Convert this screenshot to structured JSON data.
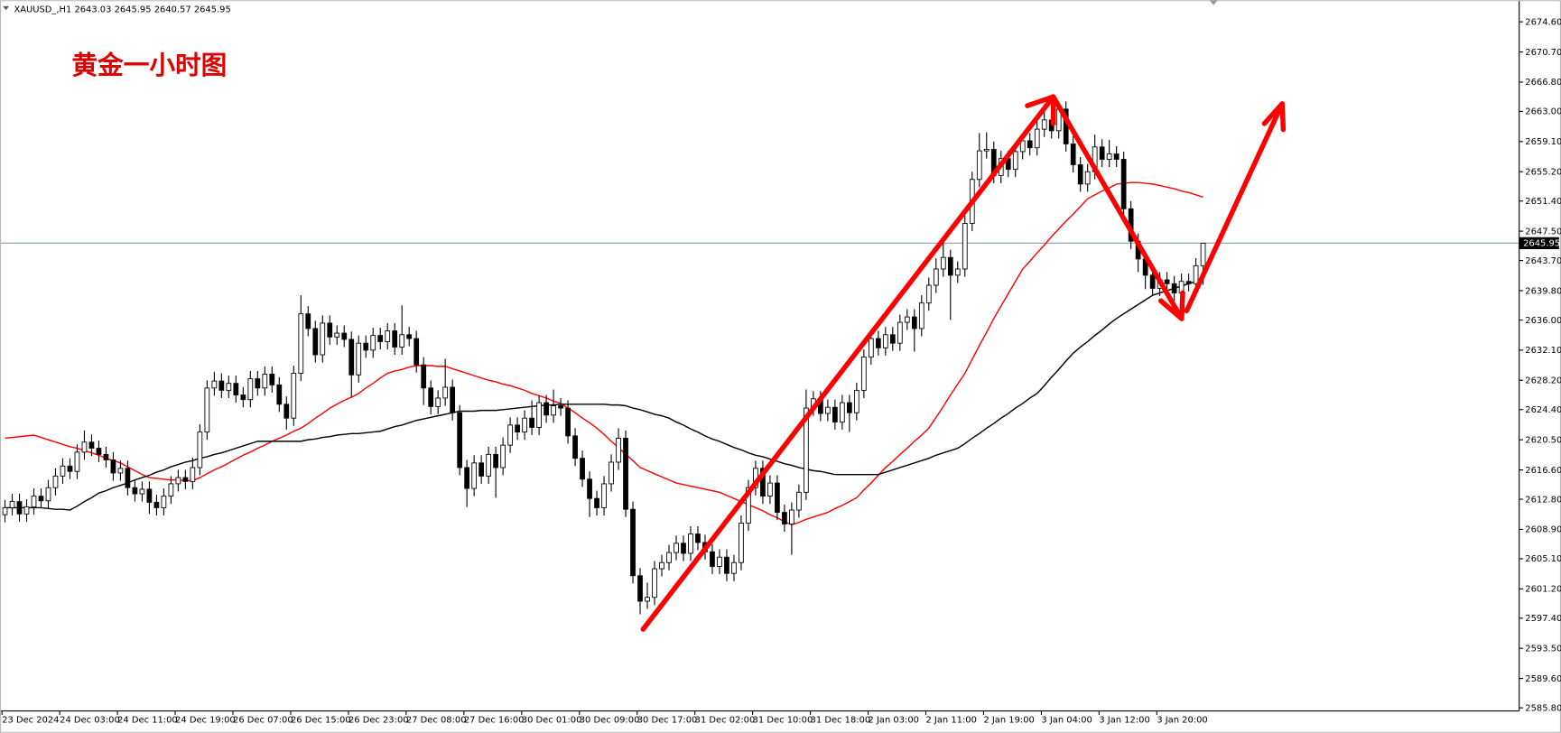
{
  "chart_data": {
    "type": "candlestick",
    "symbol": "XAUUSD_,H1",
    "annotation": "黄金一小时图",
    "categories": [
      "23 Dec 2024",
      null,
      null,
      null,
      null,
      null,
      null,
      null,
      "24 Dec 03:00",
      null,
      null,
      null,
      null,
      null,
      null,
      null,
      "24 Dec 11:00",
      null,
      null,
      null,
      null,
      null,
      null,
      null,
      "24 Dec 19:00",
      null,
      null,
      null,
      null,
      null,
      null,
      null,
      "26 Dec 07:00",
      null,
      null,
      null,
      null,
      null,
      null,
      null,
      "26 Dec 15:00",
      null,
      null,
      null,
      null,
      null,
      null,
      null,
      "26 Dec 23:00",
      null,
      null,
      null,
      null,
      null,
      null,
      null,
      "27 Dec 08:00",
      null,
      null,
      null,
      null,
      null,
      null,
      null,
      "27 Dec 16:00",
      null,
      null,
      null,
      null,
      null,
      null,
      null,
      "30 Dec 01:00",
      null,
      null,
      null,
      null,
      null,
      null,
      null,
      "30 Dec 09:00",
      null,
      null,
      null,
      null,
      null,
      null,
      null,
      "30 Dec 17:00",
      null,
      null,
      null,
      null,
      null,
      null,
      null,
      "31 Dec 02:00",
      null,
      null,
      null,
      null,
      null,
      null,
      null,
      "31 Dec 10:00",
      null,
      null,
      null,
      null,
      null,
      null,
      null,
      "31 Dec 18:00",
      null,
      null,
      null,
      null,
      null,
      null,
      null,
      "2 Jan 03:00",
      null,
      null,
      null,
      null,
      null,
      null,
      null,
      "2 Jan 11:00",
      null,
      null,
      null,
      null,
      null,
      null,
      null,
      "2 Jan 19:00",
      null,
      null,
      null,
      null,
      null,
      null,
      null,
      "3 Jan 04:00",
      null,
      null,
      null,
      null,
      null,
      null,
      null,
      "3 Jan 12:00",
      null,
      null,
      null,
      null,
      null,
      null,
      null,
      "3 Jan 20:00",
      null,
      null,
      null,
      null,
      null,
      null
    ],
    "open": [
      2610.8,
      2611.7,
      2612.5,
      2610.9,
      2611.8,
      2613.2,
      2612.6,
      2614.3,
      2615.8,
      2617.1,
      2616.4,
      2618.9,
      2620.2,
      2619.4,
      2618.6,
      2617.9,
      2616.2,
      2616.8,
      2614.3,
      2613.5,
      2614.1,
      2612.4,
      2611.7,
      2613.2,
      2614.8,
      2615.6,
      2615.1,
      2616.9,
      2621.5,
      2627.2,
      2628.1,
      2626.9,
      2627.8,
      2626.3,
      2625.7,
      2628.4,
      2627.2,
      2629.0,
      2627.6,
      2625.1,
      2623.3,
      2629.1,
      2636.8,
      2634.9,
      2631.5,
      2635.6,
      2633.8,
      2634.3,
      2633.5,
      2628.9,
      2633.0,
      2632.1,
      2634.0,
      2633.2,
      2634.6,
      2632.5,
      2634.1,
      2633.6,
      2630.2,
      2627.2,
      2624.8,
      2625.9,
      2627.3,
      2624.0,
      2616.9,
      2614.2,
      2617.5,
      2615.8,
      2618.6,
      2616.9,
      2619.8,
      2622.4,
      2621.5,
      2623.3,
      2622.1,
      2625.3,
      2623.7,
      2624.9,
      2624.6,
      2621.0,
      2618.1,
      2615.4,
      2612.9,
      2611.7,
      2614.8,
      2617.6,
      2620.7,
      2611.5,
      2602.9,
      2599.6,
      2600.1,
      2603.8,
      2604.6,
      2605.9,
      2607.1,
      2605.8,
      2608.3,
      2607.2,
      2606.0,
      2604.1,
      2605.3,
      2603.2,
      2604.6,
      2609.7,
      2614.3,
      2616.8,
      2613.2,
      2614.9,
      2611.1,
      2609.6,
      2611.4,
      2613.7,
      2624.6,
      2625.8,
      2623.9,
      2624.7,
      2622.8,
      2625.3,
      2624.0,
      2626.9,
      2631.2,
      2633.6,
      2632.4,
      2634.1,
      2633.0,
      2635.7,
      2636.4,
      2634.9,
      2638.2,
      2640.5,
      2642.6,
      2644.1,
      2641.8,
      2642.6,
      2648.5,
      2654.2,
      2657.9,
      2658.1,
      2654.7,
      2656.9,
      2655.5,
      2657.8,
      2659.2,
      2658.3,
      2660.7,
      2661.9,
      2660.5,
      2663.3,
      2658.8,
      2656.1,
      2653.6,
      2655.2,
      2658.4,
      2656.8,
      2657.5,
      2656.8,
      2650.4,
      2646.2,
      2643.9,
      2641.8,
      2640.1,
      2641.2,
      2640.7,
      2639.5,
      2641.0,
      2640.7,
      2643.03
    ],
    "high": [
      2612.7,
      2613.5,
      2613.5,
      2612.8,
      2614.2,
      2614.2,
      2615.3,
      2616.8,
      2618.1,
      2618.1,
      2619.9,
      2621.7,
      2621.2,
      2620.4,
      2619.6,
      2618.9,
      2617.8,
      2617.8,
      2615.3,
      2615.1,
      2615.1,
      2613.4,
      2614.2,
      2615.8,
      2616.6,
      2616.6,
      2618.2,
      2622.5,
      2628.2,
      2629.3,
      2629.1,
      2628.8,
      2628.8,
      2627.3,
      2629.4,
      2629.4,
      2630.0,
      2630.0,
      2628.6,
      2626.1,
      2630.1,
      2639.2,
      2637.8,
      2635.9,
      2636.6,
      2636.6,
      2635.3,
      2635.3,
      2634.5,
      2634.0,
      2634.0,
      2635.0,
      2635.0,
      2635.6,
      2635.6,
      2637.9,
      2635.1,
      2634.6,
      2631.2,
      2628.2,
      2626.9,
      2631.0,
      2628.3,
      2625.0,
      2617.9,
      2618.5,
      2618.5,
      2619.6,
      2619.6,
      2620.8,
      2623.4,
      2623.4,
      2624.3,
      2625.6,
      2626.3,
      2626.3,
      2627.0,
      2625.9,
      2625.6,
      2622.0,
      2619.1,
      2616.4,
      2613.9,
      2615.8,
      2618.6,
      2622.0,
      2621.7,
      2612.5,
      2603.9,
      2602.0,
      2604.8,
      2605.6,
      2606.9,
      2608.1,
      2608.1,
      2609.3,
      2609.3,
      2608.2,
      2607.0,
      2606.3,
      2606.3,
      2605.6,
      2610.7,
      2615.3,
      2617.8,
      2617.8,
      2615.9,
      2615.9,
      2612.1,
      2612.4,
      2614.7,
      2627.0,
      2626.8,
      2626.8,
      2625.7,
      2625.7,
      2626.3,
      2626.3,
      2627.9,
      2632.2,
      2634.6,
      2634.6,
      2635.1,
      2635.1,
      2636.7,
      2637.4,
      2637.4,
      2639.2,
      2641.5,
      2644.0,
      2646.5,
      2645.1,
      2643.6,
      2649.5,
      2655.2,
      2660.2,
      2660.3,
      2659.1,
      2657.9,
      2657.9,
      2658.8,
      2660.2,
      2660.2,
      2661.7,
      2663.2,
      2662.9,
      2664.3,
      2664.3,
      2659.8,
      2657.1,
      2656.2,
      2660.0,
      2659.4,
      2659.3,
      2658.5,
      2657.8,
      2651.4,
      2647.2,
      2644.9,
      2642.8,
      2642.2,
      2642.2,
      2641.7,
      2642.0,
      2642.0,
      2644.0,
      2645.95
    ],
    "low": [
      2609.8,
      2610.7,
      2609.9,
      2609.9,
      2610.8,
      2611.6,
      2611.6,
      2613.3,
      2614.8,
      2615.4,
      2615.4,
      2617.9,
      2618.4,
      2617.6,
      2616.9,
      2615.2,
      2615.2,
      2613.3,
      2612.5,
      2612.5,
      2610.9,
      2610.7,
      2610.7,
      2612.2,
      2613.8,
      2614.1,
      2614.1,
      2615.9,
      2620.5,
      2626.2,
      2625.9,
      2625.9,
      2625.3,
      2624.7,
      2624.7,
      2626.2,
      2626.2,
      2626.6,
      2624.1,
      2621.8,
      2622.3,
      2628.1,
      2633.9,
      2630.5,
      2630.5,
      2632.8,
      2632.8,
      2632.5,
      2626.0,
      2627.9,
      2631.1,
      2631.1,
      2632.2,
      2632.2,
      2631.5,
      2631.5,
      2632.6,
      2629.2,
      2625.0,
      2623.8,
      2623.8,
      2624.9,
      2623.0,
      2615.9,
      2611.8,
      2613.2,
      2614.8,
      2614.8,
      2613.0,
      2615.9,
      2618.8,
      2620.5,
      2620.5,
      2621.1,
      2621.1,
      2622.7,
      2622.7,
      2623.6,
      2620.0,
      2617.1,
      2614.4,
      2610.5,
      2610.7,
      2610.7,
      2613.8,
      2616.6,
      2610.5,
      2601.9,
      2597.9,
      2598.6,
      2599.1,
      2602.8,
      2603.6,
      2604.9,
      2604.8,
      2604.8,
      2606.2,
      2605.0,
      2603.1,
      2603.1,
      2602.2,
      2602.2,
      2603.6,
      2608.7,
      2613.3,
      2612.2,
      2612.2,
      2610.1,
      2608.6,
      2605.6,
      2610.4,
      2612.7,
      2623.6,
      2622.9,
      2622.9,
      2621.8,
      2621.8,
      2621.5,
      2623.0,
      2625.9,
      2630.2,
      2631.4,
      2631.4,
      2632.0,
      2632.0,
      2634.7,
      2631.9,
      2633.9,
      2637.2,
      2639.5,
      2641.6,
      2636.0,
      2640.8,
      2641.6,
      2647.5,
      2653.2,
      2656.9,
      2653.7,
      2653.7,
      2654.5,
      2654.5,
      2656.8,
      2657.3,
      2657.3,
      2659.7,
      2659.5,
      2659.5,
      2657.8,
      2655.1,
      2652.6,
      2652.6,
      2654.2,
      2655.8,
      2655.8,
      2655.8,
      2649.4,
      2645.2,
      2642.2,
      2640.0,
      2639.1,
      2639.1,
      2639.7,
      2638.5,
      2638.5,
      2639.7,
      2639.7,
      2640.57
    ],
    "close": [
      2611.7,
      2612.5,
      2610.9,
      2611.8,
      2613.2,
      2612.6,
      2614.3,
      2615.8,
      2617.1,
      2616.4,
      2618.9,
      2620.2,
      2619.4,
      2618.6,
      2617.9,
      2616.2,
      2616.8,
      2614.3,
      2613.5,
      2614.1,
      2612.4,
      2611.7,
      2613.2,
      2614.8,
      2615.6,
      2615.1,
      2616.9,
      2621.5,
      2627.2,
      2628.1,
      2626.9,
      2627.8,
      2626.3,
      2625.7,
      2628.4,
      2627.2,
      2629.0,
      2627.6,
      2625.1,
      2623.3,
      2629.1,
      2636.8,
      2634.9,
      2631.5,
      2635.6,
      2633.8,
      2634.3,
      2633.5,
      2628.9,
      2633.0,
      2632.1,
      2634.0,
      2633.2,
      2634.6,
      2632.5,
      2634.1,
      2633.6,
      2630.2,
      2627.2,
      2624.8,
      2625.9,
      2627.3,
      2624.0,
      2616.9,
      2614.2,
      2617.5,
      2615.8,
      2618.6,
      2616.9,
      2619.8,
      2622.4,
      2621.5,
      2623.3,
      2622.1,
      2625.3,
      2623.7,
      2624.9,
      2624.6,
      2621.0,
      2618.1,
      2615.4,
      2612.9,
      2611.7,
      2614.8,
      2617.6,
      2620.7,
      2611.5,
      2602.9,
      2599.6,
      2600.1,
      2603.8,
      2604.6,
      2605.9,
      2607.1,
      2605.8,
      2608.3,
      2607.2,
      2606.0,
      2604.1,
      2605.3,
      2603.2,
      2604.6,
      2609.7,
      2614.3,
      2616.8,
      2613.2,
      2614.9,
      2611.1,
      2609.6,
      2611.4,
      2613.7,
      2624.6,
      2625.8,
      2623.9,
      2624.7,
      2622.8,
      2625.3,
      2624.0,
      2626.9,
      2631.2,
      2633.6,
      2632.4,
      2634.1,
      2633.0,
      2635.7,
      2636.4,
      2634.9,
      2638.2,
      2640.5,
      2642.6,
      2644.1,
      2641.8,
      2642.6,
      2648.5,
      2654.2,
      2657.9,
      2658.1,
      2654.7,
      2656.9,
      2655.5,
      2657.8,
      2659.2,
      2658.3,
      2660.7,
      2661.9,
      2660.5,
      2663.3,
      2658.8,
      2656.1,
      2653.6,
      2655.2,
      2658.4,
      2656.8,
      2657.5,
      2656.8,
      2650.4,
      2646.2,
      2643.9,
      2641.8,
      2640.1,
      2641.2,
      2640.7,
      2639.5,
      2641.0,
      2640.7,
      2643.03,
      2645.95
    ],
    "up_color": "#ffffff",
    "down_color": "#000000",
    "price_line_color": "#8a9bb0",
    "series": [
      {
        "color": "#ff0000",
        "values": [
          2620.7,
          2620.8,
          2620.9,
          2621.0,
          2621.1,
          2620.8,
          2620.5,
          2620.2,
          2619.9,
          2619.6,
          2619.4,
          2619.1,
          2618.8,
          2618.5,
          2618.1,
          2617.8,
          2617.5,
          2617.0,
          2616.5,
          2616.0,
          2615.6,
          2615.5,
          2615.4,
          2615.3,
          2615.3,
          2615.2,
          2615.2,
          2615.6,
          2616.1,
          2616.6,
          2617.0,
          2617.5,
          2618.0,
          2618.5,
          2618.9,
          2619.4,
          2619.8,
          2620.3,
          2620.7,
          2621.1,
          2621.6,
          2622.0,
          2622.6,
          2623.3,
          2623.9,
          2624.6,
          2625.1,
          2625.6,
          2626.0,
          2626.5,
          2627.2,
          2627.8,
          2628.5,
          2629.1,
          2629.4,
          2629.6,
          2629.9,
          2630.1,
          2630.1,
          2630.1,
          2630.0,
          2630.0,
          2629.7,
          2629.4,
          2629.1,
          2628.8,
          2628.5,
          2628.2,
          2628.0,
          2627.7,
          2627.5,
          2627.2,
          2626.9,
          2626.5,
          2626.2,
          2625.9,
          2625.5,
          2625.2,
          2624.6,
          2624.0,
          2623.3,
          2622.7,
          2622.0,
          2621.2,
          2620.3,
          2619.5,
          2618.6,
          2617.8,
          2616.9,
          2616.5,
          2616.1,
          2615.7,
          2615.3,
          2614.9,
          2614.7,
          2614.5,
          2614.3,
          2614.1,
          2613.9,
          2613.7,
          2613.3,
          2612.9,
          2612.5,
          2612.1,
          2611.7,
          2611.3,
          2610.8,
          2610.4,
          2609.9,
          2609.5,
          2609.8,
          2610.2,
          2610.5,
          2610.8,
          2611.1,
          2611.6,
          2612.0,
          2612.5,
          2613.0,
          2614.0,
          2614.9,
          2615.9,
          2616.9,
          2617.7,
          2618.6,
          2619.4,
          2620.3,
          2621.1,
          2622.0,
          2623.4,
          2624.8,
          2626.3,
          2627.7,
          2629.1,
          2630.9,
          2632.7,
          2634.4,
          2636.2,
          2637.8,
          2639.4,
          2641.0,
          2642.6,
          2643.6,
          2644.7,
          2645.7,
          2646.8,
          2647.8,
          2648.8,
          2649.7,
          2650.7,
          2651.7,
          2652.2,
          2652.7,
          2653.1,
          2653.6,
          2653.7,
          2653.8,
          2653.8,
          2653.7,
          2653.6,
          2653.4,
          2653.2,
          2653.0,
          2652.7,
          2652.5,
          2652.2,
          2651.9
        ]
      },
      {
        "color": "#000000",
        "values": [
          2611.7,
          2611.7,
          2611.7,
          2611.7,
          2611.7,
          2611.7,
          2611.6,
          2611.5,
          2611.5,
          2611.4,
          2611.9,
          2612.5,
          2613.0,
          2613.6,
          2613.9,
          2614.3,
          2614.6,
          2614.9,
          2615.3,
          2615.6,
          2615.9,
          2616.3,
          2616.6,
          2617.0,
          2617.3,
          2617.6,
          2617.8,
          2618.1,
          2618.3,
          2618.6,
          2618.8,
          2619.1,
          2619.4,
          2619.7,
          2620.0,
          2620.3,
          2620.3,
          2620.3,
          2620.3,
          2620.3,
          2620.3,
          2620.3,
          2620.5,
          2620.6,
          2620.8,
          2620.9,
          2621.1,
          2621.2,
          2621.3,
          2621.3,
          2621.4,
          2621.5,
          2621.6,
          2621.9,
          2622.2,
          2622.4,
          2622.7,
          2623.0,
          2623.2,
          2623.4,
          2623.6,
          2623.8,
          2624.0,
          2624.2,
          2624.2,
          2624.2,
          2624.3,
          2624.3,
          2624.3,
          2624.4,
          2624.5,
          2624.6,
          2624.7,
          2624.8,
          2624.9,
          2625.0,
          2625.0,
          2625.1,
          2625.1,
          2625.1,
          2625.1,
          2625.1,
          2625.1,
          2625.1,
          2625.0,
          2625.0,
          2624.9,
          2624.6,
          2624.4,
          2624.1,
          2623.8,
          2623.6,
          2623.3,
          2622.8,
          2622.4,
          2621.9,
          2621.5,
          2621.0,
          2620.6,
          2620.3,
          2619.9,
          2619.5,
          2619.2,
          2618.8,
          2618.5,
          2618.3,
          2618.0,
          2617.7,
          2617.4,
          2617.2,
          2616.9,
          2616.7,
          2616.5,
          2616.4,
          2616.2,
          2616.0,
          2616.0,
          2616.0,
          2616.0,
          2616.0,
          2616.0,
          2616.0,
          2616.3,
          2616.6,
          2616.9,
          2617.2,
          2617.5,
          2617.8,
          2618.1,
          2618.5,
          2618.8,
          2619.1,
          2619.4,
          2620.0,
          2620.7,
          2621.3,
          2622.0,
          2622.6,
          2623.3,
          2623.9,
          2624.6,
          2625.2,
          2625.9,
          2626.5,
          2627.5,
          2628.6,
          2629.6,
          2630.7,
          2631.7,
          2632.5,
          2633.2,
          2634.0,
          2634.7,
          2635.5,
          2636.2,
          2636.8,
          2637.4,
          2638.0,
          2638.6,
          2639.2,
          2639.5,
          2639.8,
          2640.1,
          2640.4,
          2640.7,
          2641.0,
          2641.3
        ]
      }
    ],
    "ylim": [
      2585.4,
      2677.4
    ],
    "yticks": [
      {
        "value": 2674.6,
        "label": "2674.60"
      },
      {
        "value": 2670.7,
        "label": "2670.70"
      },
      {
        "value": 2666.8,
        "label": "2666.80"
      },
      {
        "value": 2663.0,
        "label": "2663.00"
      },
      {
        "value": 2659.1,
        "label": "2659.10"
      },
      {
        "value": 2655.2,
        "label": "2655.20"
      },
      {
        "value": 2651.4,
        "label": "2651.40"
      },
      {
        "value": 2647.5,
        "label": "2647.50"
      },
      {
        "value": 2643.7,
        "label": "2643.70"
      },
      {
        "value": 2639.8,
        "label": "2639.80"
      },
      {
        "value": 2636.0,
        "label": "2636.00"
      },
      {
        "value": 2632.1,
        "label": "2632.10"
      },
      {
        "value": 2628.2,
        "label": "2628.20"
      },
      {
        "value": 2624.4,
        "label": "2624.40"
      },
      {
        "value": 2620.5,
        "label": "2620.50"
      },
      {
        "value": 2616.6,
        "label": "2616.60"
      },
      {
        "value": 2612.8,
        "label": "2612.80"
      },
      {
        "value": 2608.9,
        "label": "2608.90"
      },
      {
        "value": 2605.1,
        "label": "2605.10"
      },
      {
        "value": 2601.2,
        "label": "2601.20"
      },
      {
        "value": 2597.4,
        "label": "2597.40"
      },
      {
        "value": 2593.5,
        "label": "2593.50"
      },
      {
        "value": 2589.6,
        "label": "2589.60"
      },
      {
        "value": 2585.8,
        "label": "2585.80"
      }
    ]
  }
}
